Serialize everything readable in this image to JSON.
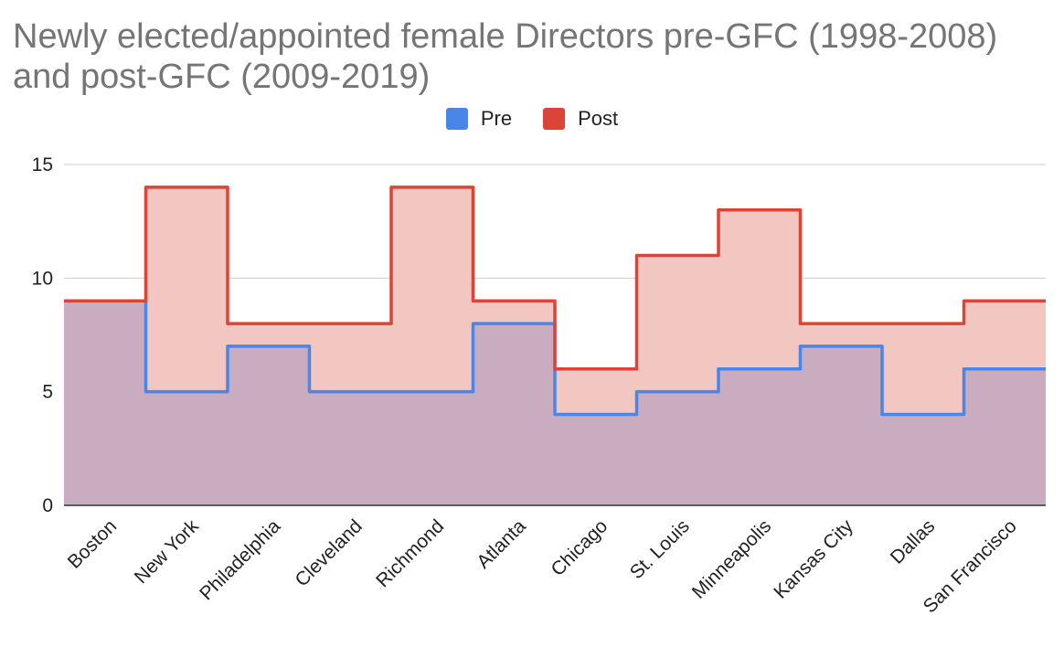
{
  "chart_data": {
    "type": "area",
    "subtype": "stepped",
    "title": "Newly elected/appointed female Directors pre-GFC (1998-2008) and post-GFC (2009-2019)",
    "xlabel": "",
    "ylabel": "",
    "categories": [
      "Boston",
      "New York",
      "Philadelphia",
      "Cleveland",
      "Richmond",
      "Atlanta",
      "Chicago",
      "St. Louis",
      "Minneapolis",
      "Kansas City",
      "Dallas",
      "San Francisco"
    ],
    "series": [
      {
        "name": "Pre",
        "values": [
          9,
          5,
          7,
          5,
          5,
          8,
          4,
          5,
          6,
          7,
          4,
          6
        ],
        "color": "#4a86e8"
      },
      {
        "name": "Post",
        "values": [
          9,
          14,
          8,
          8,
          14,
          9,
          6,
          11,
          13,
          8,
          8,
          9
        ],
        "color": "#db4437"
      }
    ],
    "ylim": [
      0,
      15
    ],
    "yticks": [
      0,
      5,
      10,
      15
    ],
    "grid": true,
    "legend_position": "top-center"
  },
  "colors": {
    "pre_line": "#4a86e8",
    "post_line": "#db4437",
    "pre_fill": "#c9acc0",
    "post_fill": "#f2c6c1",
    "grid": "#cccccc",
    "axis": "#333333"
  }
}
